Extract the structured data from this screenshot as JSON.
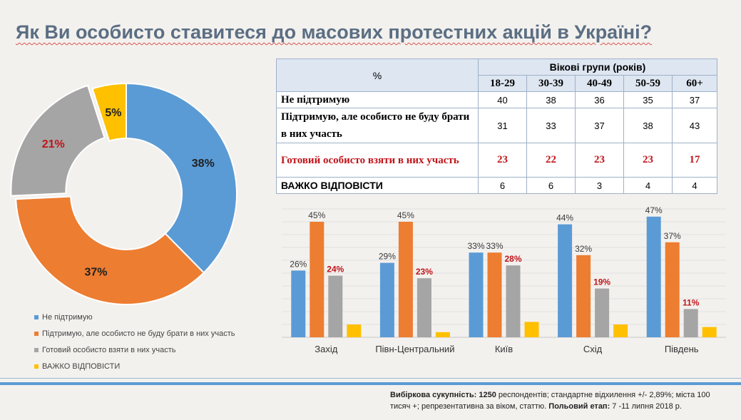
{
  "title": "Як Ви особисто ставитеся до масових протестних акцій в Україні?",
  "colors": {
    "blue": "#5b9bd5",
    "orange": "#ed7d31",
    "gray": "#a5a5a5",
    "yellow": "#ffc000",
    "red_text": "#c0151b"
  },
  "table": {
    "corner": "%",
    "group_header": "Вікові групи  (років)",
    "age_groups": [
      "18-29",
      "30-39",
      "40-49",
      "50-59",
      "60+"
    ],
    "rows": [
      {
        "label": "Не підтримую",
        "values": [
          "40",
          "38",
          "36",
          "35",
          "37"
        ]
      },
      {
        "label": "Підтримую, але особисто не буду брати в них участь",
        "values": [
          "31",
          "33",
          "37",
          "38",
          "43"
        ]
      },
      {
        "label": "Готовий особисто взяти в них участь",
        "values": [
          "23",
          "22",
          "23",
          "23",
          "17"
        ]
      },
      {
        "label": "ВАЖКО ВІДПОВІСТИ",
        "values": [
          "6",
          "6",
          "3",
          "4",
          "4"
        ]
      }
    ]
  },
  "legend": [
    {
      "label": "Не підтримую",
      "color": "#5b9bd5"
    },
    {
      "label": "Підтримую, але особисто не буду брати в них участь",
      "color": "#ed7d31"
    },
    {
      "label": "Готовий особисто взяти в них участь",
      "color": "#a5a5a5"
    },
    {
      "label": "ВАЖКО ВІДПОВІСТИ",
      "color": "#ffc000"
    }
  ],
  "footnote": {
    "bold1": "Вибіркова  сукупність:  1250",
    "text1": " респондентів; стандартне  відхилення +/- 2,89%; міста 100 тисяч +; репрезентативна за віком, статтю.",
    "bold2": " Польовий етап:",
    "text2": " 7 -11 липня 2018 р."
  },
  "chart_data": [
    {
      "type": "pie",
      "categories": [
        "Не підтримую",
        "Підтримую, але особисто не буду брати в них участь",
        "Готовий особисто взяти в них участь",
        "ВАЖКО ВІДПОВІСТИ"
      ],
      "values": [
        38,
        37,
        21,
        5
      ],
      "data_labels": [
        "38%",
        "37%",
        "21%",
        "5%"
      ]
    },
    {
      "type": "bar",
      "categories": [
        "Захід",
        "Півн-Центральний",
        "Київ",
        "Схід",
        "Південь"
      ],
      "series": [
        {
          "name": "Не підтримую",
          "values": [
            26,
            29,
            33,
            44,
            47
          ]
        },
        {
          "name": "Підтримую, але особисто не буду брати в них участь",
          "values": [
            45,
            45,
            33,
            32,
            37
          ]
        },
        {
          "name": "Готовий особисто взяти в них участь",
          "values": [
            24,
            23,
            28,
            19,
            11
          ]
        },
        {
          "name": "ВАЖКО ВІДПОВІСТИ",
          "values": [
            5,
            2,
            6,
            5,
            4
          ]
        }
      ],
      "data_labels": [
        [
          "26%",
          "29%",
          "33%",
          "44%",
          "47%"
        ],
        [
          "45%",
          "45%",
          "33%",
          "32%",
          "37%"
        ],
        [
          "24%",
          "23%",
          "28%",
          "19%",
          "11%"
        ],
        [
          "",
          "",
          "",
          "",
          ""
        ]
      ],
      "ylim": [
        0,
        50
      ]
    }
  ]
}
